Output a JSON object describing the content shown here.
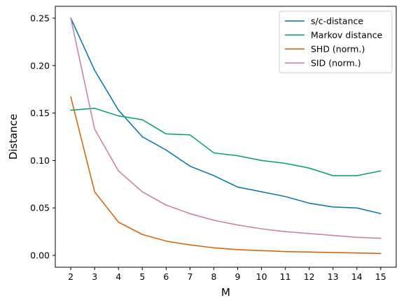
{
  "chart_data": {
    "type": "line",
    "title": "",
    "xlabel": "M",
    "ylabel": "Distance",
    "x": [
      2,
      3,
      4,
      5,
      6,
      7,
      8,
      9,
      10,
      11,
      12,
      13,
      14,
      15
    ],
    "xticks": [
      "2",
      "3",
      "4",
      "5",
      "6",
      "7",
      "8",
      "9",
      "10",
      "11",
      "12",
      "13",
      "14",
      "15"
    ],
    "xlim": [
      1.35,
      15.65
    ],
    "yticks": [
      "0.00",
      "0.05",
      "0.10",
      "0.15",
      "0.20",
      "0.25"
    ],
    "ytick_values": [
      0.0,
      0.05,
      0.1,
      0.15,
      0.2,
      0.25
    ],
    "ylim": [
      -0.0125,
      0.2625
    ],
    "grid": false,
    "legend_position": "top-right",
    "series": [
      {
        "name": "s/c-distance",
        "color": "#0072b2",
        "values": [
          0.25,
          0.195,
          0.153,
          0.125,
          0.111,
          0.094,
          0.084,
          0.072,
          0.067,
          0.062,
          0.055,
          0.051,
          0.05,
          0.044
        ]
      },
      {
        "name": "Markov distance",
        "color": "#009e73",
        "values": [
          0.153,
          0.155,
          0.147,
          0.143,
          0.128,
          0.127,
          0.108,
          0.105,
          0.1,
          0.097,
          0.092,
          0.084,
          0.084,
          0.089
        ]
      },
      {
        "name": "SHD (norm.)",
        "color": "#d55e00",
        "values": [
          0.167,
          0.067,
          0.035,
          0.022,
          0.015,
          0.011,
          0.008,
          0.006,
          0.005,
          0.004,
          0.0035,
          0.003,
          0.0025,
          0.002
        ]
      },
      {
        "name": "SID (norm.)",
        "color": "#cc79a7",
        "values": [
          0.25,
          0.133,
          0.089,
          0.067,
          0.053,
          0.044,
          0.037,
          0.032,
          0.028,
          0.025,
          0.023,
          0.021,
          0.019,
          0.018
        ]
      }
    ]
  }
}
